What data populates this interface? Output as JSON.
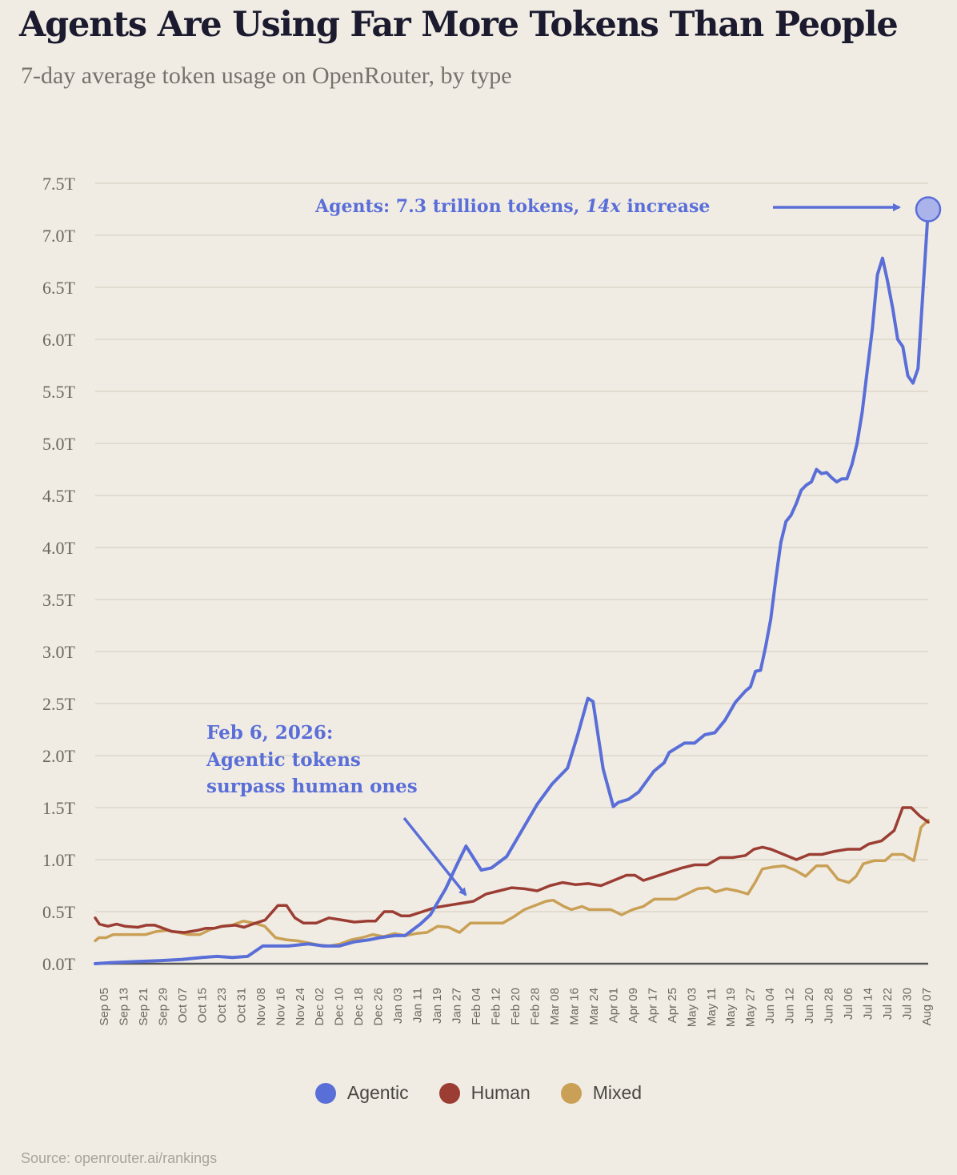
{
  "title": "Agents Are Using Far More Tokens Than People",
  "subtitle": "7-day average token usage on OpenRouter, by type",
  "source": "Source: openrouter.ai/rankings",
  "colors": {
    "agentic": "#5a6ed8",
    "human": "#9b3d33",
    "mixed": "#c9a055",
    "grid": "#dcd7c8",
    "axis": "#555555",
    "background": "#f0ece4"
  },
  "annotations": {
    "peak_prefix": "Agents: 7.3 trillion tokens, ",
    "peak_emph": "14x",
    "peak_suffix": " increase",
    "cross_line1": "Feb 6, 2026:",
    "cross_line2": "Agentic tokens",
    "cross_line3": "surpass human ones"
  },
  "chart_data": {
    "type": "line",
    "ylim": [
      0,
      7.5
    ],
    "yticks": [
      "0.0T",
      "0.5T",
      "1.0T",
      "1.5T",
      "2.0T",
      "2.5T",
      "3.0T",
      "3.5T",
      "4.0T",
      "4.5T",
      "5.0T",
      "5.5T",
      "6.0T",
      "6.5T",
      "7.0T",
      "7.5T"
    ],
    "xticks": [
      "Sep 05",
      "Sep 13",
      "Sep 21",
      "Sep 29",
      "Oct 07",
      "Oct 15",
      "Oct 23",
      "Oct 31",
      "Nov 08",
      "Nov 16",
      "Nov 24",
      "Dec 02",
      "Dec 10",
      "Dec 18",
      "Dec 26",
      "Jan 03",
      "Jan 11",
      "Jan 19",
      "Jan 27",
      "Feb 04",
      "Feb 12",
      "Feb 20",
      "Feb 28",
      "Mar 08",
      "Mar 16",
      "Mar 24",
      "Apr 01",
      "Apr 09",
      "Apr 17",
      "Apr 25",
      "May 03",
      "May 11",
      "May 19",
      "May 27",
      "Jun 04",
      "Jun 12",
      "Jun 20",
      "Jun 28",
      "Jul 06",
      "Jul 14",
      "Jul 22",
      "Jul 30",
      "Aug 07"
    ],
    "grid": true,
    "legend": "bottom-center",
    "series": [
      {
        "name": "Agentic",
        "points": [
          [
            0,
            0.0
          ],
          [
            3,
            0.01
          ],
          [
            8,
            0.02
          ],
          [
            13,
            0.03
          ],
          [
            17,
            0.04
          ],
          [
            21,
            0.06
          ],
          [
            24,
            0.07
          ],
          [
            27,
            0.06
          ],
          [
            30,
            0.07
          ],
          [
            33,
            0.17
          ],
          [
            38,
            0.17
          ],
          [
            42,
            0.19
          ],
          [
            45,
            0.17
          ],
          [
            48,
            0.17
          ],
          [
            51,
            0.21
          ],
          [
            54,
            0.23
          ],
          [
            56,
            0.25
          ],
          [
            59,
            0.27
          ],
          [
            61,
            0.27
          ],
          [
            64,
            0.38
          ],
          [
            66,
            0.47
          ],
          [
            69,
            0.72
          ],
          [
            71,
            0.93
          ],
          [
            73,
            1.13
          ],
          [
            76,
            0.9
          ],
          [
            78,
            0.92
          ],
          [
            81,
            1.03
          ],
          [
            84,
            1.28
          ],
          [
            87,
            1.53
          ],
          [
            90,
            1.73
          ],
          [
            93,
            1.88
          ],
          [
            95,
            2.2
          ],
          [
            97,
            2.55
          ],
          [
            98,
            2.52
          ],
          [
            100,
            1.87
          ],
          [
            102,
            1.51
          ],
          [
            103,
            1.55
          ],
          [
            105,
            1.58
          ],
          [
            107,
            1.65
          ],
          [
            110,
            1.85
          ],
          [
            112,
            1.93
          ],
          [
            113,
            2.03
          ],
          [
            115,
            2.09
          ],
          [
            116,
            2.12
          ],
          [
            118,
            2.12
          ],
          [
            120,
            2.2
          ],
          [
            122,
            2.22
          ],
          [
            124,
            2.34
          ],
          [
            126,
            2.51
          ],
          [
            128,
            2.62
          ],
          [
            129,
            2.66
          ],
          [
            130,
            2.81
          ],
          [
            131,
            2.82
          ],
          [
            132,
            3.05
          ],
          [
            133,
            3.31
          ],
          [
            134,
            3.7
          ],
          [
            135,
            4.05
          ],
          [
            136,
            4.25
          ],
          [
            137,
            4.31
          ],
          [
            138,
            4.42
          ],
          [
            139,
            4.55
          ],
          [
            140,
            4.6
          ],
          [
            141,
            4.63
          ],
          [
            142,
            4.75
          ],
          [
            143,
            4.71
          ],
          [
            144,
            4.72
          ],
          [
            145,
            4.67
          ],
          [
            146,
            4.63
          ],
          [
            147,
            4.66
          ],
          [
            148,
            4.66
          ],
          [
            149,
            4.8
          ],
          [
            150,
            5.0
          ],
          [
            151,
            5.3
          ],
          [
            152,
            5.7
          ],
          [
            153,
            6.1
          ],
          [
            154,
            6.62
          ],
          [
            155,
            6.78
          ],
          [
            156,
            6.56
          ],
          [
            157,
            6.3
          ],
          [
            158,
            6.0
          ],
          [
            159,
            5.93
          ],
          [
            160,
            5.65
          ],
          [
            161,
            5.58
          ],
          [
            162,
            5.72
          ],
          [
            164,
            7.25
          ]
        ]
      },
      {
        "name": "Human",
        "points": [
          [
            0,
            0.44
          ],
          [
            1,
            0.38
          ],
          [
            3,
            0.36
          ],
          [
            5,
            0.38
          ],
          [
            7,
            0.36
          ],
          [
            10,
            0.35
          ],
          [
            12,
            0.37
          ],
          [
            14,
            0.37
          ],
          [
            16,
            0.34
          ],
          [
            18,
            0.31
          ],
          [
            21,
            0.3
          ],
          [
            24,
            0.32
          ],
          [
            26,
            0.34
          ],
          [
            28,
            0.34
          ],
          [
            30,
            0.36
          ],
          [
            33,
            0.37
          ],
          [
            35,
            0.35
          ],
          [
            37,
            0.38
          ],
          [
            40,
            0.42
          ],
          [
            43,
            0.56
          ],
          [
            45,
            0.56
          ],
          [
            47,
            0.44
          ],
          [
            49,
            0.39
          ],
          [
            52,
            0.39
          ],
          [
            55,
            0.44
          ],
          [
            58,
            0.42
          ],
          [
            61,
            0.4
          ],
          [
            64,
            0.41
          ],
          [
            66,
            0.41
          ],
          [
            68,
            0.5
          ],
          [
            70,
            0.5
          ],
          [
            72,
            0.46
          ],
          [
            74,
            0.46
          ],
          [
            77,
            0.5
          ],
          [
            80,
            0.54
          ],
          [
            83,
            0.56
          ],
          [
            86,
            0.58
          ],
          [
            89,
            0.6
          ],
          [
            92,
            0.67
          ],
          [
            95,
            0.7
          ],
          [
            98,
            0.73
          ],
          [
            101,
            0.72
          ],
          [
            104,
            0.7
          ],
          [
            107,
            0.75
          ],
          [
            110,
            0.78
          ],
          [
            113,
            0.76
          ],
          [
            116,
            0.77
          ],
          [
            119,
            0.75
          ],
          [
            122,
            0.8
          ],
          [
            125,
            0.85
          ],
          [
            127,
            0.85
          ],
          [
            129,
            0.8
          ],
          [
            132,
            0.84
          ],
          [
            135,
            0.88
          ],
          [
            138,
            0.92
          ],
          [
            141,
            0.95
          ],
          [
            144,
            0.95
          ],
          [
            147,
            1.02
          ],
          [
            150,
            1.02
          ],
          [
            153,
            1.04
          ],
          [
            155,
            1.1
          ],
          [
            157,
            1.12
          ],
          [
            159,
            1.1
          ],
          [
            162,
            1.05
          ],
          [
            165,
            1.0
          ],
          [
            168,
            1.05
          ],
          [
            171,
            1.05
          ],
          [
            174,
            1.08
          ],
          [
            177,
            1.1
          ],
          [
            180,
            1.1
          ],
          [
            182,
            1.15
          ],
          [
            185,
            1.18
          ],
          [
            188,
            1.28
          ],
          [
            190,
            1.5
          ],
          [
            192,
            1.5
          ],
          [
            194,
            1.42
          ],
          [
            196,
            1.36
          ]
        ]
      },
      {
        "name": "Mixed",
        "points": [
          [
            0,
            0.22
          ],
          [
            1,
            0.25
          ],
          [
            3,
            0.25
          ],
          [
            5,
            0.28
          ],
          [
            8,
            0.28
          ],
          [
            11,
            0.28
          ],
          [
            14,
            0.28
          ],
          [
            17,
            0.31
          ],
          [
            20,
            0.32
          ],
          [
            23,
            0.3
          ],
          [
            26,
            0.28
          ],
          [
            29,
            0.28
          ],
          [
            32,
            0.33
          ],
          [
            35,
            0.36
          ],
          [
            38,
            0.37
          ],
          [
            41,
            0.41
          ],
          [
            44,
            0.39
          ],
          [
            47,
            0.36
          ],
          [
            50,
            0.25
          ],
          [
            53,
            0.23
          ],
          [
            56,
            0.22
          ],
          [
            59,
            0.2
          ],
          [
            62,
            0.18
          ],
          [
            65,
            0.17
          ],
          [
            68,
            0.19
          ],
          [
            71,
            0.23
          ],
          [
            74,
            0.25
          ],
          [
            77,
            0.28
          ],
          [
            80,
            0.26
          ],
          [
            83,
            0.29
          ],
          [
            86,
            0.27
          ],
          [
            89,
            0.29
          ],
          [
            92,
            0.3
          ],
          [
            95,
            0.36
          ],
          [
            98,
            0.35
          ],
          [
            101,
            0.3
          ],
          [
            104,
            0.39
          ],
          [
            107,
            0.39
          ],
          [
            110,
            0.39
          ],
          [
            113,
            0.39
          ],
          [
            116,
            0.45
          ],
          [
            119,
            0.52
          ],
          [
            122,
            0.56
          ],
          [
            125,
            0.6
          ],
          [
            127,
            0.61
          ],
          [
            130,
            0.55
          ],
          [
            132,
            0.52
          ],
          [
            135,
            0.55
          ],
          [
            137,
            0.52
          ],
          [
            140,
            0.52
          ],
          [
            143,
            0.52
          ],
          [
            146,
            0.47
          ],
          [
            149,
            0.52
          ],
          [
            152,
            0.55
          ],
          [
            155,
            0.62
          ],
          [
            158,
            0.62
          ],
          [
            161,
            0.62
          ],
          [
            164,
            0.67
          ],
          [
            167,
            0.72
          ],
          [
            170,
            0.73
          ],
          [
            172,
            0.69
          ],
          [
            175,
            0.72
          ],
          [
            178,
            0.7
          ],
          [
            181,
            0.67
          ],
          [
            183,
            0.78
          ],
          [
            185,
            0.91
          ],
          [
            188,
            0.93
          ],
          [
            191,
            0.94
          ],
          [
            194,
            0.9
          ],
          [
            197,
            0.84
          ],
          [
            200,
            0.94
          ],
          [
            203,
            0.94
          ],
          [
            206,
            0.81
          ],
          [
            209,
            0.78
          ],
          [
            211,
            0.84
          ],
          [
            213,
            0.96
          ],
          [
            216,
            0.99
          ],
          [
            219,
            0.99
          ],
          [
            221,
            1.05
          ],
          [
            224,
            1.05
          ],
          [
            227,
            0.99
          ],
          [
            229,
            1.31
          ],
          [
            231,
            1.38
          ]
        ]
      }
    ]
  },
  "legend_items": [
    {
      "label": "Agentic"
    },
    {
      "label": "Human"
    },
    {
      "label": "Mixed"
    }
  ]
}
